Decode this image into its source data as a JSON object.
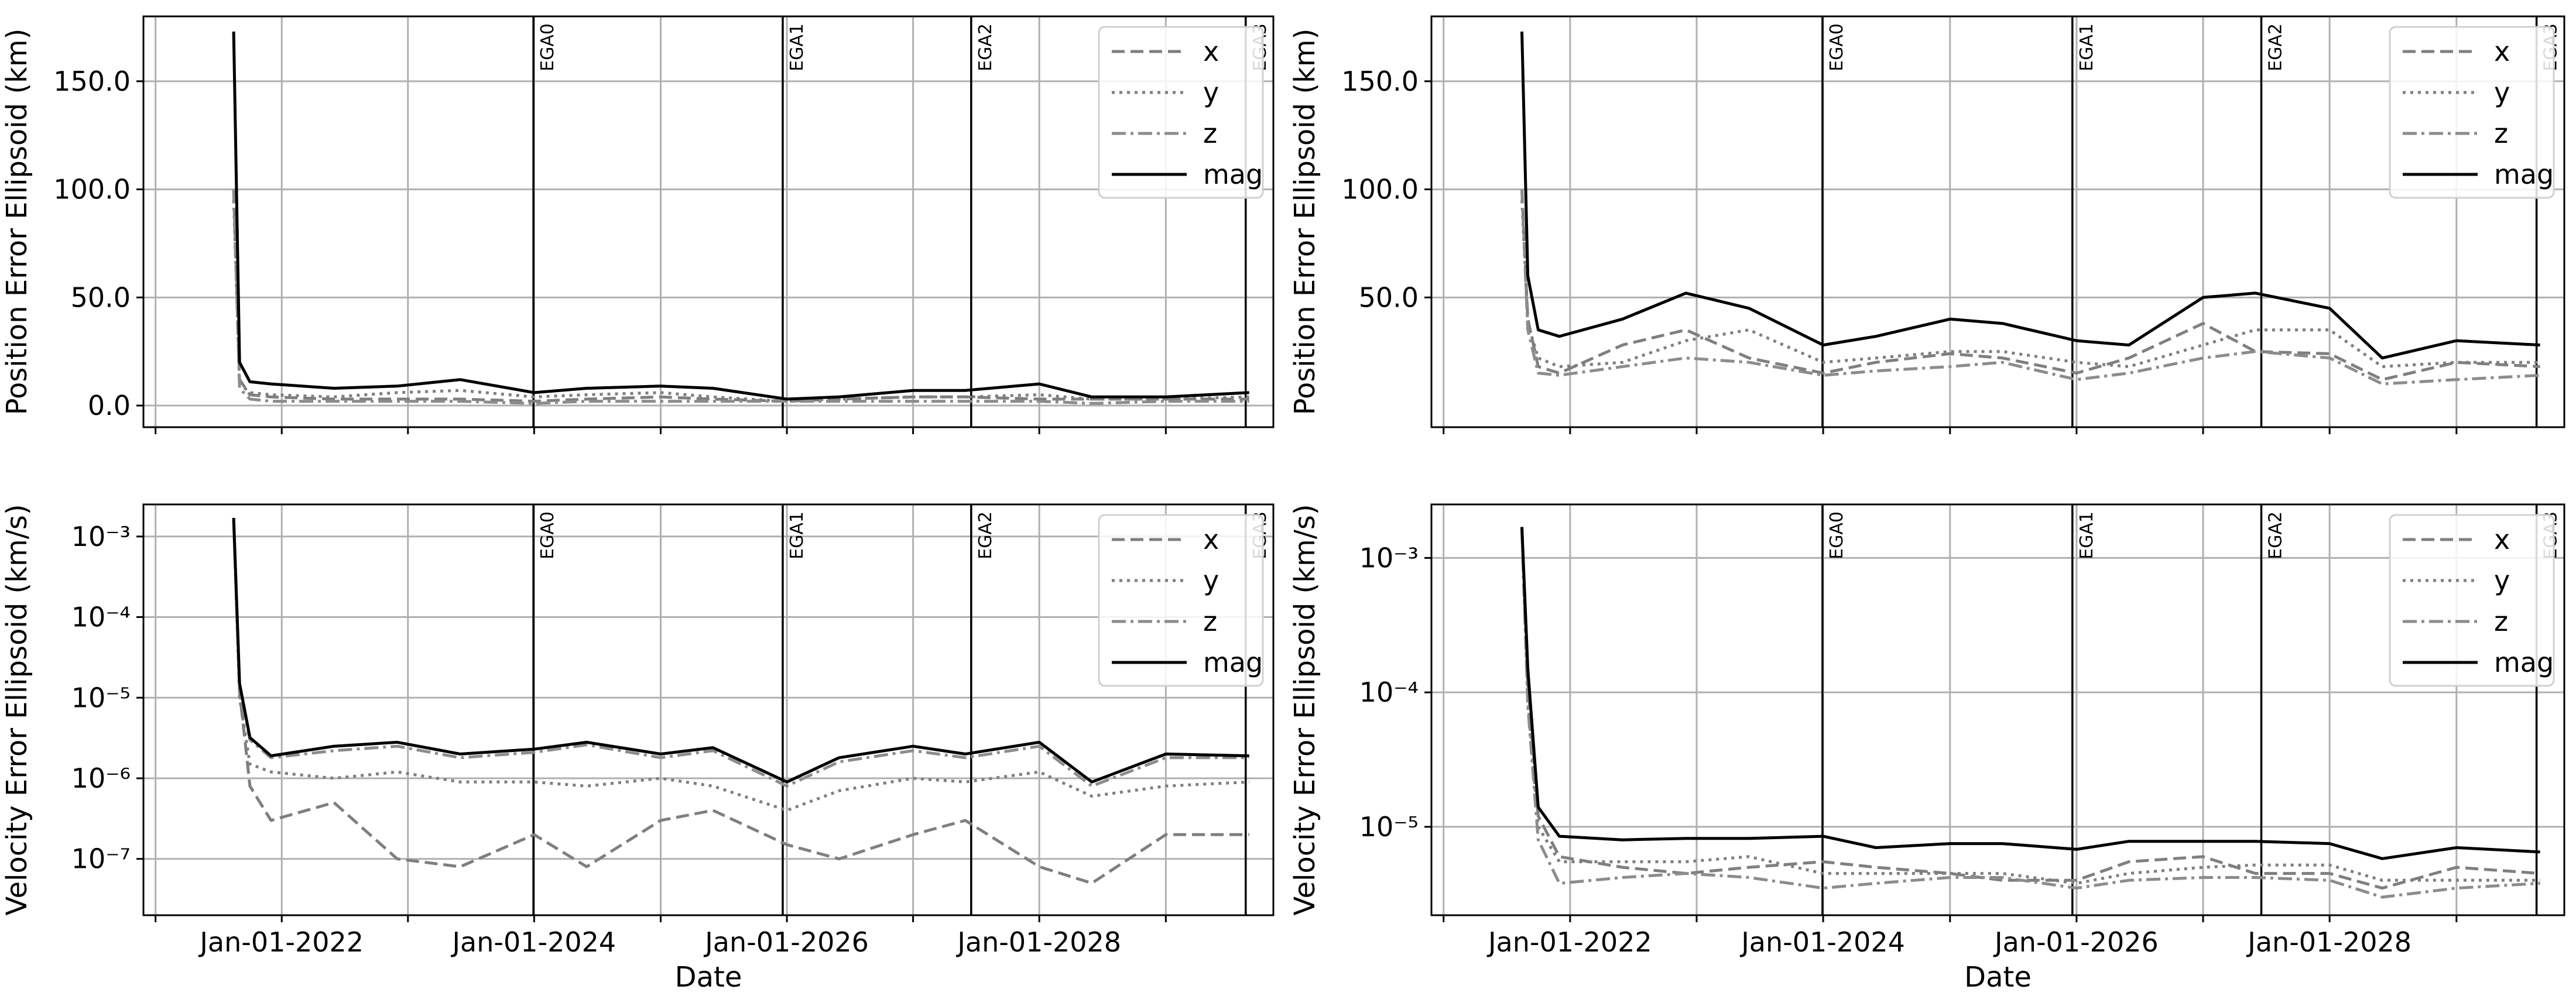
{
  "chart_data": [
    {
      "type": "line",
      "panel": "top-left",
      "xlabel": "",
      "ylabel": "Position Error Ellipsoid (km)",
      "yscale": "linear",
      "ylim": [
        -10,
        180
      ],
      "yticks": [
        0,
        50,
        100,
        150
      ],
      "ytick_labels": [
        "0.0",
        "50.0",
        "100.0",
        "150.0"
      ],
      "xlim": [
        "2020-11-27",
        "2029-11-08"
      ],
      "xticks": [
        "2021-01-01",
        "2022-01-01",
        "2023-01-01",
        "2024-01-01",
        "2025-01-01",
        "2026-01-01",
        "2027-01-01",
        "2028-01-01",
        "2029-01-01"
      ],
      "xtick_labels": [
        "",
        "",
        "",
        "",
        "",
        "",
        "",
        "",
        ""
      ],
      "grid": true,
      "legend": "top-right",
      "events": [
        {
          "label": "EGA0",
          "date": "2023-12-30"
        },
        {
          "label": "EGA1",
          "date": "2025-12-20"
        },
        {
          "label": "EGA2",
          "date": "2027-06-18"
        },
        {
          "label": "EGA3",
          "date": "2029-08-20"
        }
      ],
      "dates": [
        "2021-08-15",
        "2021-09-01",
        "2021-10-01",
        "2021-12-01",
        "2022-06-01",
        "2022-12-01",
        "2023-06-01",
        "2024-01-01",
        "2024-06-01",
        "2025-01-01",
        "2025-06-01",
        "2026-01-01",
        "2026-06-01",
        "2027-01-01",
        "2027-06-01",
        "2028-01-01",
        "2028-06-01",
        "2029-01-01",
        "2029-08-30"
      ],
      "series": [
        {
          "name": "x",
          "style": "dashed",
          "values": [
            100,
            12,
            5,
            4,
            3,
            3,
            3,
            2,
            3,
            4,
            3,
            2,
            3,
            4,
            4,
            3,
            3,
            3,
            3
          ]
        },
        {
          "name": "y",
          "style": "dotted",
          "values": [
            95,
            10,
            6,
            5,
            4,
            6,
            7,
            4,
            5,
            6,
            4,
            2,
            3,
            4,
            4,
            5,
            3,
            3,
            4
          ]
        },
        {
          "name": "z",
          "style": "dashdot",
          "values": [
            100,
            8,
            3,
            2,
            2,
            2,
            2,
            1,
            2,
            2,
            2,
            2,
            2,
            2,
            2,
            2,
            1,
            2,
            2
          ]
        },
        {
          "name": "mag",
          "style": "solid",
          "values": [
            173,
            20,
            11,
            10,
            8,
            9,
            12,
            6,
            8,
            9,
            8,
            3,
            4,
            7,
            7,
            10,
            4,
            4,
            6
          ]
        }
      ]
    },
    {
      "type": "line",
      "panel": "top-right",
      "xlabel": "",
      "ylabel": "Position Error Ellipsoid (km)",
      "yscale": "linear",
      "ylim": [
        -10,
        180
      ],
      "yticks": [
        50,
        100,
        150
      ],
      "ytick_labels": [
        "50.0",
        "100.0",
        "150.0"
      ],
      "xlim": [
        "2020-11-27",
        "2029-11-08"
      ],
      "xticks": [
        "2021-01-01",
        "2022-01-01",
        "2023-01-01",
        "2024-01-01",
        "2025-01-01",
        "2026-01-01",
        "2027-01-01",
        "2028-01-01",
        "2029-01-01"
      ],
      "xtick_labels": [
        "",
        "",
        "",
        "",
        "",
        "",
        "",
        "",
        ""
      ],
      "grid": true,
      "legend": "top-right",
      "events": [
        {
          "label": "EGA0",
          "date": "2023-12-30"
        },
        {
          "label": "EGA1",
          "date": "2025-12-20"
        },
        {
          "label": "EGA2",
          "date": "2027-06-18"
        },
        {
          "label": "EGA3",
          "date": "2029-08-20"
        }
      ],
      "dates": [
        "2021-08-15",
        "2021-09-01",
        "2021-10-01",
        "2021-12-01",
        "2022-06-01",
        "2022-12-01",
        "2023-06-01",
        "2024-01-01",
        "2024-06-01",
        "2025-01-01",
        "2025-06-01",
        "2026-01-01",
        "2026-06-01",
        "2027-01-01",
        "2027-06-01",
        "2028-01-01",
        "2028-06-01",
        "2029-01-01",
        "2029-08-30"
      ],
      "series": [
        {
          "name": "x",
          "style": "dashed",
          "values": [
            100,
            40,
            18,
            15,
            28,
            35,
            22,
            15,
            20,
            24,
            22,
            15,
            22,
            38,
            25,
            24,
            12,
            20,
            18
          ]
        },
        {
          "name": "y",
          "style": "dotted",
          "values": [
            95,
            38,
            22,
            18,
            20,
            30,
            35,
            20,
            22,
            25,
            25,
            20,
            18,
            28,
            35,
            35,
            18,
            20,
            20
          ]
        },
        {
          "name": "z",
          "style": "dashdot",
          "values": [
            100,
            35,
            15,
            14,
            18,
            22,
            20,
            14,
            16,
            18,
            20,
            12,
            15,
            22,
            25,
            22,
            10,
            12,
            14
          ]
        },
        {
          "name": "mag",
          "style": "solid",
          "values": [
            173,
            60,
            35,
            32,
            40,
            52,
            45,
            28,
            32,
            40,
            38,
            30,
            28,
            50,
            52,
            45,
            22,
            30,
            28
          ]
        }
      ]
    },
    {
      "type": "line",
      "panel": "bottom-left",
      "xlabel": "Date",
      "ylabel": "Velocity Error Ellipsoid (km/s)",
      "yscale": "log",
      "ylim": [
        2e-08,
        0.0025
      ],
      "yticks": [
        1e-07,
        1e-06,
        1e-05,
        0.0001,
        0.001
      ],
      "ytick_labels": [
        "10⁻⁷",
        "10⁻⁶",
        "10⁻⁵",
        "10⁻⁴",
        "10⁻³"
      ],
      "xlim": [
        "2020-11-27",
        "2029-11-08"
      ],
      "xticks": [
        "2022-01-01",
        "2024-01-01",
        "2026-01-01",
        "2028-01-01"
      ],
      "xtick_labels": [
        "Jan-01-2022",
        "Jan-01-2024",
        "Jan-01-2026",
        "Jan-01-2028"
      ],
      "minor_xticks": [
        "2021-01-01",
        "2023-01-01",
        "2025-01-01",
        "2027-01-01",
        "2029-01-01"
      ],
      "grid": true,
      "legend": "top-right",
      "events": [
        {
          "label": "EGA0",
          "date": "2023-12-30"
        },
        {
          "label": "EGA1",
          "date": "2025-12-20"
        },
        {
          "label": "EGA2",
          "date": "2027-06-18"
        },
        {
          "label": "EGA3",
          "date": "2029-08-20"
        }
      ],
      "dates": [
        "2021-08-15",
        "2021-09-01",
        "2021-10-01",
        "2021-12-01",
        "2022-06-01",
        "2022-12-01",
        "2023-06-01",
        "2024-01-01",
        "2024-06-01",
        "2025-01-01",
        "2025-06-01",
        "2026-01-01",
        "2026-06-01",
        "2027-01-01",
        "2027-06-01",
        "2028-01-01",
        "2028-06-01",
        "2029-01-01",
        "2029-08-30"
      ],
      "series": [
        {
          "name": "x",
          "style": "dashed",
          "values": [
            0.0017,
            1.2e-05,
            8e-07,
            3e-07,
            5e-07,
            1e-07,
            8e-08,
            2e-07,
            8e-08,
            3e-07,
            4e-07,
            1.5e-07,
            1e-07,
            2e-07,
            3e-07,
            8e-08,
            5e-08,
            2e-07,
            2e-07
          ]
        },
        {
          "name": "y",
          "style": "dotted",
          "values": [
            0.0016,
            1e-05,
            1.5e-06,
            1.2e-06,
            1e-06,
            1.2e-06,
            9e-07,
            9e-07,
            8e-07,
            1e-06,
            8e-07,
            4e-07,
            7e-07,
            1e-06,
            9e-07,
            1.2e-06,
            6e-07,
            8e-07,
            9e-07
          ]
        },
        {
          "name": "z",
          "style": "dashdot",
          "values": [
            0.0016,
            1.3e-05,
            3e-06,
            1.8e-06,
            2.2e-06,
            2.5e-06,
            1.8e-06,
            2.1e-06,
            2.6e-06,
            1.8e-06,
            2.2e-06,
            8e-07,
            1.6e-06,
            2.2e-06,
            1.8e-06,
            2.5e-06,
            8e-07,
            1.8e-06,
            1.8e-06
          ]
        },
        {
          "name": "mag",
          "style": "solid",
          "values": [
            0.0017,
            1.5e-05,
            3.2e-06,
            1.9e-06,
            2.5e-06,
            2.8e-06,
            2e-06,
            2.3e-06,
            2.8e-06,
            2e-06,
            2.4e-06,
            9e-07,
            1.8e-06,
            2.5e-06,
            2e-06,
            2.8e-06,
            9e-07,
            2e-06,
            1.9e-06
          ]
        }
      ]
    },
    {
      "type": "line",
      "panel": "bottom-right",
      "xlabel": "Date",
      "ylabel": "Velocity Error Ellipsoid (km/s)",
      "yscale": "log",
      "ylim": [
        2.2e-06,
        0.0025
      ],
      "yticks": [
        1e-05,
        0.0001,
        0.001
      ],
      "ytick_labels": [
        "10⁻⁵",
        "10⁻⁴",
        "10⁻³"
      ],
      "xlim": [
        "2020-11-27",
        "2029-11-08"
      ],
      "xticks": [
        "2022-01-01",
        "2024-01-01",
        "2026-01-01",
        "2028-01-01"
      ],
      "xtick_labels": [
        "Jan-01-2022",
        "Jan-01-2024",
        "Jan-01-2026",
        "Jan-01-2028"
      ],
      "minor_xticks": [
        "2021-01-01",
        "2023-01-01",
        "2025-01-01",
        "2027-01-01",
        "2029-01-01"
      ],
      "grid": true,
      "legend": "top-right",
      "events": [
        {
          "label": "EGA0",
          "date": "2023-12-30"
        },
        {
          "label": "EGA1",
          "date": "2025-12-20"
        },
        {
          "label": "EGA2",
          "date": "2027-06-18"
        },
        {
          "label": "EGA3",
          "date": "2029-08-20"
        }
      ],
      "dates": [
        "2021-08-15",
        "2021-09-01",
        "2021-10-01",
        "2021-12-01",
        "2022-06-01",
        "2022-12-01",
        "2023-06-01",
        "2024-01-01",
        "2024-06-01",
        "2025-01-01",
        "2025-06-01",
        "2026-01-01",
        "2026-06-01",
        "2027-01-01",
        "2027-06-01",
        "2028-01-01",
        "2028-06-01",
        "2029-01-01",
        "2029-08-30"
      ],
      "series": [
        {
          "name": "x",
          "style": "dashed",
          "values": [
            0.0017,
            0.00012,
            1.2e-05,
            6e-06,
            5e-06,
            4.5e-06,
            5e-06,
            5.5e-06,
            5e-06,
            4.5e-06,
            4e-06,
            4e-06,
            5.5e-06,
            6e-06,
            4.5e-06,
            4.5e-06,
            3.5e-06,
            5e-06,
            4.5e-06
          ]
        },
        {
          "name": "y",
          "style": "dotted",
          "values": [
            0.0016,
            9e-05,
            1e-05,
            5.5e-06,
            5.5e-06,
            5.5e-06,
            6e-06,
            4.5e-06,
            4.5e-06,
            4.5e-06,
            4.5e-06,
            3.8e-06,
            4.5e-06,
            5e-06,
            5.2e-06,
            5.2e-06,
            4e-06,
            4e-06,
            4e-06
          ]
        },
        {
          "name": "z",
          "style": "dashdot",
          "values": [
            0.0016,
            8e-05,
            8e-06,
            3.8e-06,
            4.2e-06,
            4.5e-06,
            4.2e-06,
            3.5e-06,
            3.8e-06,
            4.2e-06,
            4.2e-06,
            3.5e-06,
            4e-06,
            4.2e-06,
            4.2e-06,
            4e-06,
            3e-06,
            3.5e-06,
            3.8e-06
          ]
        },
        {
          "name": "mag",
          "style": "solid",
          "values": [
            0.0017,
            0.00015,
            1.4e-05,
            8.5e-06,
            8e-06,
            8.2e-06,
            8.2e-06,
            8.5e-06,
            7e-06,
            7.5e-06,
            7.5e-06,
            6.8e-06,
            7.8e-06,
            7.8e-06,
            7.8e-06,
            7.5e-06,
            5.8e-06,
            7e-06,
            6.5e-06
          ]
        }
      ]
    }
  ]
}
